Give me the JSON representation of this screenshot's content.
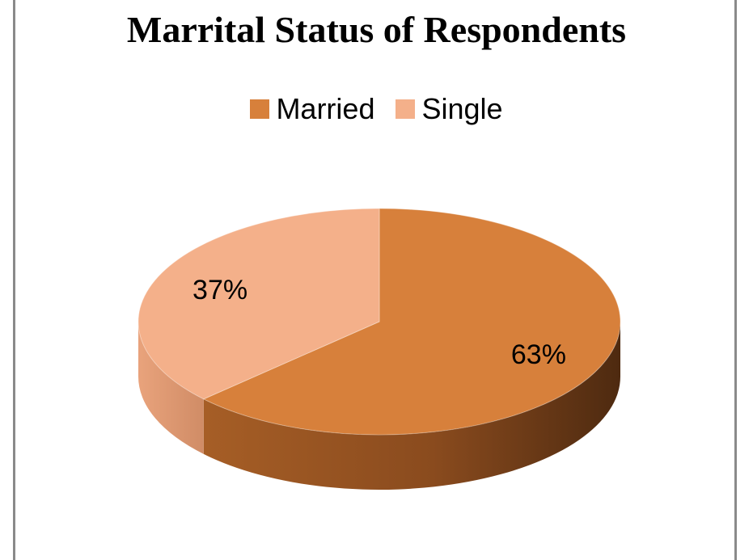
{
  "chart_data": {
    "type": "pie",
    "title": "Marrital Status of Respondents",
    "categories": [
      "Married",
      "Single"
    ],
    "values": [
      63,
      37
    ],
    "data_labels": [
      "63%",
      "37%"
    ],
    "colors": [
      "#D7803B",
      "#F4B08A"
    ],
    "legend_position": "top",
    "style": "3d"
  }
}
